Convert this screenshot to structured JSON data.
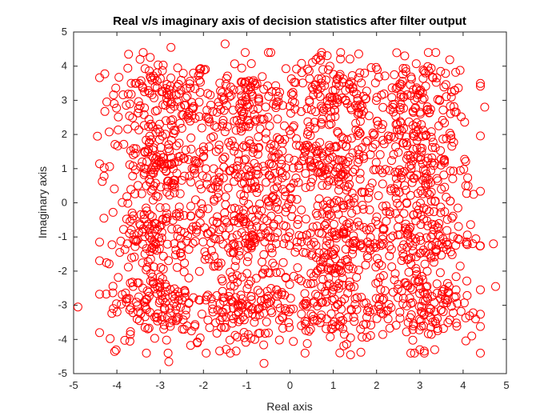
{
  "chart_data": {
    "type": "scatter",
    "title": "Real v/s imaginary axis of decision statistics after filter output",
    "xlabel": "Real axis",
    "ylabel": "Imaginary axis",
    "xlim": [
      -5,
      5
    ],
    "ylim": [
      -5,
      5
    ],
    "xticks": [
      -5,
      -4,
      -3,
      -2,
      -1,
      0,
      1,
      2,
      3,
      4,
      5
    ],
    "yticks": [
      -5,
      -4,
      -3,
      -2,
      -1,
      0,
      1,
      2,
      3,
      4,
      5
    ],
    "xtick_labels": [
      "-5",
      "-4",
      "-3",
      "-2",
      "-1",
      "0",
      "1",
      "2",
      "3",
      "4",
      "5"
    ],
    "ytick_labels": [
      "-5",
      "-4",
      "-3",
      "-2",
      "-1",
      "0",
      "1",
      "2",
      "3",
      "4",
      "5"
    ],
    "grid": false,
    "marker": "circle-open",
    "marker_color": "#ff0000",
    "constellation_centers": [
      [
        -3,
        3
      ],
      [
        -1,
        3
      ],
      [
        1,
        3
      ],
      [
        3,
        3
      ],
      [
        -3,
        1
      ],
      [
        -1,
        1
      ],
      [
        1,
        1
      ],
      [
        3,
        1
      ],
      [
        -3,
        -1
      ],
      [
        -1,
        -1
      ],
      [
        1,
        -1
      ],
      [
        3,
        -1
      ],
      [
        -3,
        -3
      ],
      [
        -1,
        -3
      ],
      [
        1,
        -3
      ],
      [
        3,
        -3
      ]
    ],
    "points_per_center": 140,
    "noise_std": 0.62,
    "outlier_points": [
      [
        -4.9,
        -3.05
      ],
      [
        -4.45,
        1.95
      ],
      [
        -4.4,
        -3.8
      ],
      [
        -4.3,
        -0.45
      ],
      [
        -2.75,
        4.55
      ],
      [
        -1.5,
        4.65
      ],
      [
        0.65,
        4.25
      ],
      [
        2.65,
        4.3
      ],
      [
        4.5,
        2.8
      ],
      [
        4.7,
        -1.2
      ],
      [
        4.75,
        -2.45
      ],
      [
        -0.6,
        -4.7
      ],
      [
        1.4,
        -4.45
      ],
      [
        -2.8,
        -4.65
      ],
      [
        3.0,
        -4.3
      ],
      [
        4.2,
        -3.9
      ]
    ]
  }
}
